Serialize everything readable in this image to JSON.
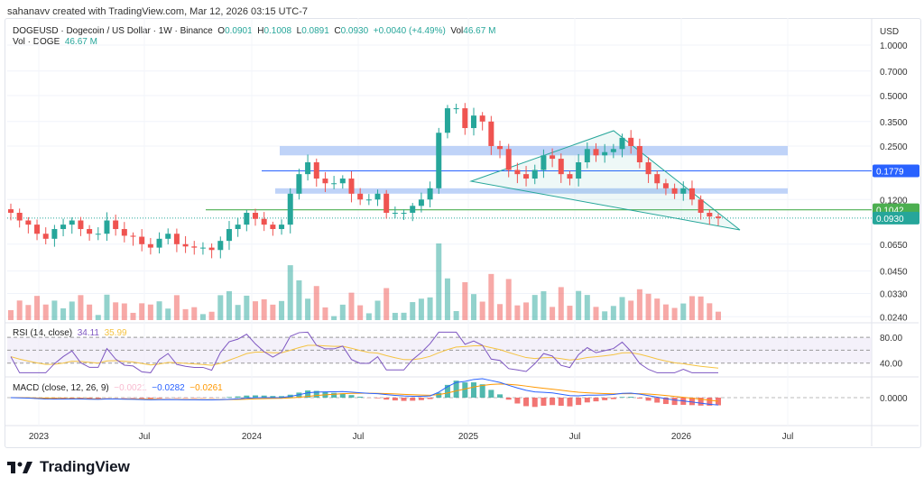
{
  "credit": "sahanavv created with TradingView.com, Mar 12, 2026 03:15 UTC-7",
  "legend": {
    "symbol": "DOGEUSD · Dogecoin / US Dollar · 1W · Binance",
    "o_label": "O",
    "o": "0.0901",
    "h_label": "H",
    "h": "0.1008",
    "l_label": "L",
    "l": "0.0891",
    "c_label": "C",
    "c": "0.0930",
    "change": "+0.0040 (+4.49%)",
    "vol_label": "Vol",
    "vol": "46.67 M",
    "vol_row_label": "Vol · DOGE",
    "vol_row_value": "46.67 M"
  },
  "rsi": {
    "label": "RSI (14, close)",
    "value": "34.11",
    "ma": "35.99"
  },
  "macd": {
    "label": "MACD (close, 12, 26, 9)",
    "hist": "−0.0021",
    "macd": "−0.0282",
    "signal": "−0.0261"
  },
  "brand": "TradingView",
  "colors": {
    "up": "#26a69a",
    "down": "#ef5350",
    "zone": "#a9c4f5",
    "line_blue": "#2962ff",
    "line_green": "#4caf50",
    "rsi": "#7e57c2",
    "rsi_ma": "#f5c342",
    "macd": "#2962ff",
    "signal": "#ff9800"
  },
  "chart_data": {
    "type": "candlestick",
    "scale": "log",
    "currency": "USD",
    "y_ticks": [
      "1.0000",
      "0.7000",
      "0.5000",
      "0.3500",
      "0.2500",
      "0.1200",
      "0.0650",
      "0.0450",
      "0.0330",
      "0.0240"
    ],
    "y_tick_values": [
      1.0,
      0.7,
      0.5,
      0.35,
      0.25,
      0.12,
      0.065,
      0.045,
      0.033,
      0.024
    ],
    "x_ticks": [
      "2023",
      "Jul",
      "2024",
      "Jul",
      "2025",
      "Jul",
      "2026",
      "Jul"
    ],
    "price_labels": [
      {
        "value": "0.1779",
        "color": "#2962ff"
      },
      {
        "value": "0.1042",
        "color": "#4caf50"
      },
      {
        "value": "0.0930",
        "color": "#26a69a"
      }
    ],
    "zones": [
      [
        0.22,
        0.25
      ],
      [
        0.13,
        0.14
      ]
    ],
    "closes": [
      0.1,
      0.09,
      0.085,
      0.075,
      0.07,
      0.08,
      0.085,
      0.09,
      0.08,
      0.075,
      0.075,
      0.09,
      0.08,
      0.073,
      0.072,
      0.065,
      0.062,
      0.07,
      0.075,
      0.065,
      0.063,
      0.062,
      0.062,
      0.06,
      0.068,
      0.08,
      0.085,
      0.1,
      0.092,
      0.085,
      0.08,
      0.085,
      0.13,
      0.17,
      0.2,
      0.16,
      0.15,
      0.15,
      0.16,
      0.13,
      0.12,
      0.12,
      0.13,
      0.1,
      0.1,
      0.1,
      0.11,
      0.12,
      0.14,
      0.3,
      0.42,
      0.42,
      0.32,
      0.38,
      0.35,
      0.25,
      0.24,
      0.18,
      0.17,
      0.16,
      0.18,
      0.22,
      0.21,
      0.17,
      0.16,
      0.2,
      0.24,
      0.22,
      0.23,
      0.24,
      0.28,
      0.25,
      0.2,
      0.17,
      0.15,
      0.14,
      0.13,
      0.14,
      0.12,
      0.1,
      0.095,
      0.093
    ],
    "rsi_bands": [
      "80.00",
      "40.00"
    ],
    "macd_tick": "0.0000"
  }
}
